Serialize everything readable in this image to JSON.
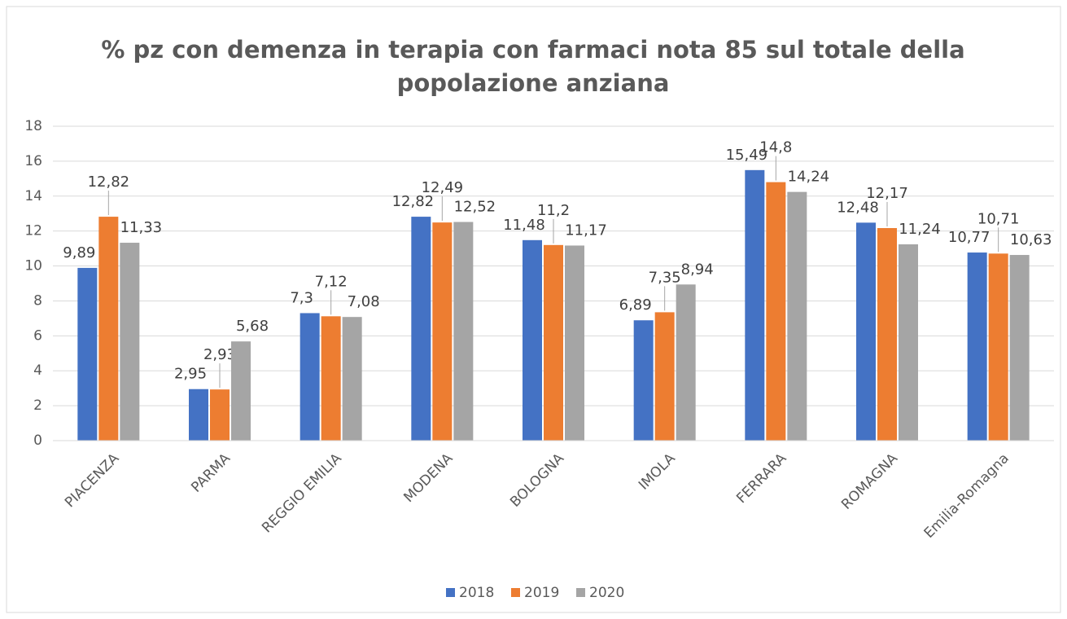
{
  "chart_data": {
    "type": "bar",
    "title": [
      "% pz con demenza in terapia con farmaci nota 85 sul totale della",
      "popolazione anziana"
    ],
    "categories": [
      "PIACENZA",
      "PARMA",
      "REGGIO EMILIA",
      "MODENA",
      "BOLOGNA",
      "IMOLA",
      "FERRARA",
      "ROMAGNA",
      "Emilia-Romagna"
    ],
    "series": [
      {
        "name": "2018",
        "color": "#4472c4",
        "values": [
          9.89,
          2.95,
          7.3,
          12.82,
          11.48,
          6.89,
          15.49,
          12.48,
          10.77
        ],
        "value_labels": [
          "9,89",
          "2,95",
          "7,3",
          "12,82",
          "11,48",
          "6,89",
          "15,49",
          "12,48",
          "10,77"
        ]
      },
      {
        "name": "2019",
        "color": "#ed7d31",
        "values": [
          12.82,
          2.93,
          7.12,
          12.49,
          11.2,
          7.35,
          14.8,
          12.17,
          10.71
        ],
        "value_labels": [
          "12,82",
          "2,93",
          "7,12",
          "12,49",
          "11,2",
          "7,35",
          "14,8",
          "12,17",
          "10,71"
        ]
      },
      {
        "name": "2020",
        "color": "#a5a5a5",
        "values": [
          11.33,
          5.68,
          7.08,
          12.52,
          11.17,
          8.94,
          14.24,
          11.24,
          10.63
        ],
        "value_labels": [
          "11,33",
          "5,68",
          "7,08",
          "12,52",
          "11,17",
          "8,94",
          "14,24",
          "11,24",
          "10,63"
        ]
      }
    ],
    "ylim": [
      0,
      18
    ],
    "yticks": [
      0,
      2,
      4,
      6,
      8,
      10,
      12,
      14,
      16,
      18
    ],
    "grid": true,
    "legend": "bottom"
  }
}
